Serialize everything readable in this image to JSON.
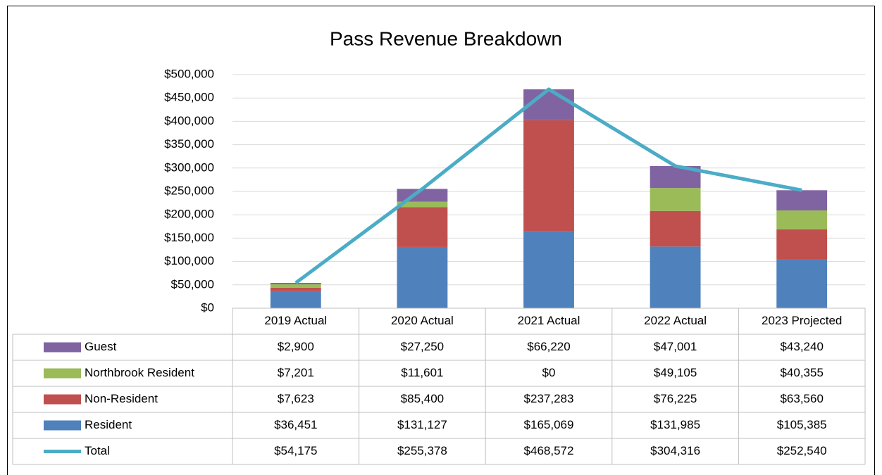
{
  "chart_data": {
    "type": "bar",
    "stacked": true,
    "title": "Pass Revenue Breakdown",
    "categories": [
      "2019 Actual",
      "2020 Actual",
      "2021 Actual",
      "2022 Actual",
      "2023 Projected"
    ],
    "series": [
      {
        "name": "Guest",
        "color": "#8064a2",
        "values": [
          2900,
          27250,
          66220,
          47001,
          43240
        ],
        "value_labels": [
          "$2,900",
          "$27,250",
          "$66,220",
          "$47,001",
          "$43,240"
        ]
      },
      {
        "name": "Northbrook Resident",
        "color": "#9bbb59",
        "values": [
          7201,
          11601,
          0,
          49105,
          40355
        ],
        "value_labels": [
          "$7,201",
          "$11,601",
          "$0",
          "$49,105",
          "$40,355"
        ]
      },
      {
        "name": "Non-Resident",
        "color": "#c0504d",
        "values": [
          7623,
          85400,
          237283,
          76225,
          63560
        ],
        "value_labels": [
          "$7,623",
          "$85,400",
          "$237,283",
          "$76,225",
          "$63,560"
        ]
      },
      {
        "name": "Resident",
        "color": "#4f81bd",
        "values": [
          36451,
          131127,
          165069,
          131985,
          105385
        ],
        "value_labels": [
          "$36,451",
          "$131,127",
          "$165,069",
          "$131,985",
          "$105,385"
        ]
      },
      {
        "name": "Total",
        "color": "#4bacc6",
        "type": "line",
        "values": [
          54175,
          255378,
          468572,
          304316,
          252540
        ],
        "value_labels": [
          "$54,175",
          "$255,378",
          "$468,572",
          "$304,316",
          "$252,540"
        ]
      }
    ],
    "ylim": [
      0,
      500000
    ],
    "yticks": [
      {
        "value": 0,
        "label": "$0"
      },
      {
        "value": 50000,
        "label": "$50,000"
      },
      {
        "value": 100000,
        "label": "$100,000"
      },
      {
        "value": 150000,
        "label": "$150,000"
      },
      {
        "value": 200000,
        "label": "$200,000"
      },
      {
        "value": 250000,
        "label": "$250,000"
      },
      {
        "value": 300000,
        "label": "$300,000"
      },
      {
        "value": 350000,
        "label": "$350,000"
      },
      {
        "value": 400000,
        "label": "$400,000"
      },
      {
        "value": 450000,
        "label": "$450,000"
      },
      {
        "value": 500000,
        "label": "$500,000"
      }
    ],
    "grid": true,
    "data_table": true
  }
}
